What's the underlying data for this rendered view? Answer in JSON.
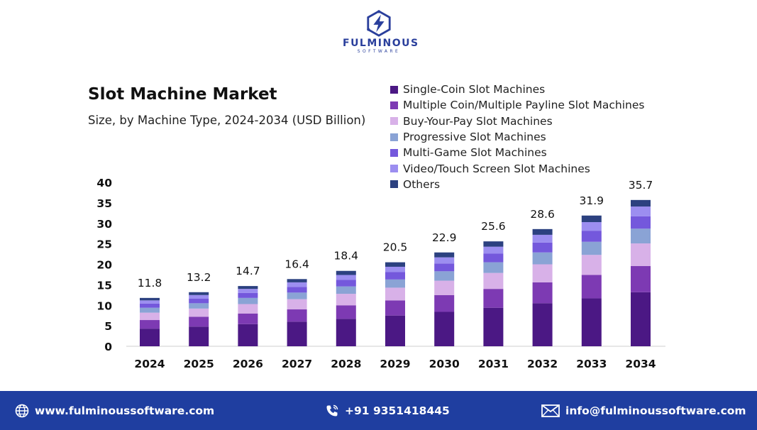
{
  "brand": {
    "name": "FULMINOUS",
    "tagline": "SOFTWARE"
  },
  "footer": {
    "website": "www.fulminoussoftware.com",
    "phone": "+91 9351418445",
    "email": "info@fulminoussoftware.com"
  },
  "chart_data": {
    "type": "bar",
    "stacked": true,
    "title": "Slot Machine Market",
    "subtitle": "Size, by Machine Type, 2024-2034 (USD Billion)",
    "categories": [
      "2024",
      "2025",
      "2026",
      "2027",
      "2028",
      "2029",
      "2030",
      "2031",
      "2032",
      "2033",
      "2034"
    ],
    "totals": [
      11.8,
      13.2,
      14.7,
      16.4,
      18.4,
      20.5,
      22.9,
      25.6,
      28.6,
      31.9,
      35.7
    ],
    "total_labels": [
      "11.8",
      "13.2",
      "14.7",
      "16.4",
      "18.4",
      "20.5",
      "22.9",
      "25.6",
      "28.6",
      "31.9",
      "35.7"
    ],
    "series": [
      {
        "name": "Single-Coin Slot Machines",
        "color": "#4b1884",
        "values": [
          4.3,
          4.8,
          5.4,
          6.0,
          6.7,
          7.5,
          8.4,
          9.4,
          10.5,
          11.7,
          13.2
        ]
      },
      {
        "name": "Multiple Coin/Multiple Payline Slot Machines",
        "color": "#7d3ab3",
        "values": [
          2.1,
          2.4,
          2.6,
          3.0,
          3.3,
          3.7,
          4.1,
          4.6,
          5.1,
          5.7,
          6.4
        ]
      },
      {
        "name": "Buy-Your-Pay Slot Machines",
        "color": "#d8b1e8",
        "values": [
          1.8,
          2.0,
          2.3,
          2.5,
          2.8,
          3.1,
          3.5,
          3.9,
          4.4,
          4.9,
          5.5
        ]
      },
      {
        "name": "Progressive Slot Machines",
        "color": "#8aa3d5",
        "values": [
          1.2,
          1.3,
          1.5,
          1.6,
          1.8,
          2.0,
          2.3,
          2.6,
          2.9,
          3.2,
          3.6
        ]
      },
      {
        "name": "Multi-Game Slot Machines",
        "color": "#7458dc",
        "values": [
          1.0,
          1.1,
          1.2,
          1.4,
          1.6,
          1.8,
          1.9,
          2.1,
          2.4,
          2.7,
          3.0
        ]
      },
      {
        "name": "Video/Touch Screen Slot Machines",
        "color": "#9c8ef0",
        "values": [
          0.8,
          0.9,
          1.0,
          1.1,
          1.2,
          1.3,
          1.5,
          1.7,
          1.9,
          2.1,
          2.4
        ]
      },
      {
        "name": "Others",
        "color": "#2c4180",
        "values": [
          0.6,
          0.7,
          0.7,
          0.8,
          1.0,
          1.1,
          1.2,
          1.3,
          1.4,
          1.6,
          1.6
        ]
      }
    ],
    "ylim": [
      0,
      40
    ],
    "yticks": [
      "0",
      "5",
      "10",
      "15",
      "20",
      "25",
      "30",
      "35",
      "40"
    ],
    "legend_position": "top-right",
    "grid": false
  }
}
